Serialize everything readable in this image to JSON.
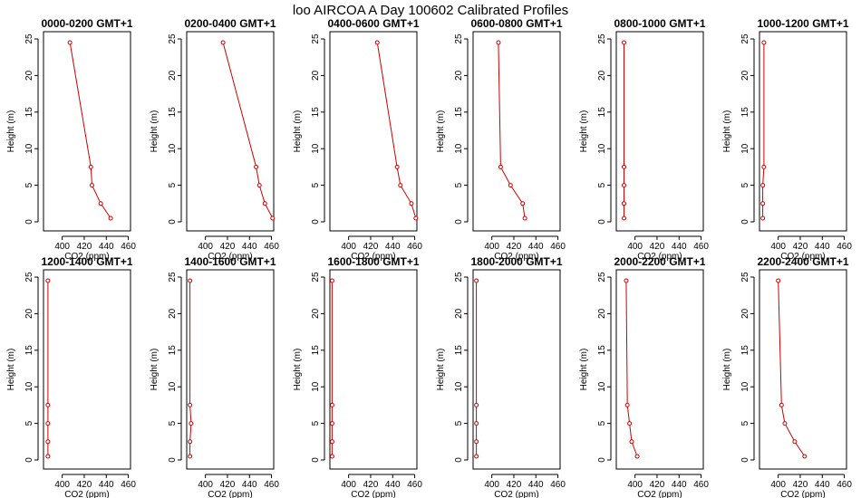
{
  "title": "loo AIRCOA A  Day 100602  Calibrated Profiles",
  "colors": {
    "series": "#cc0000",
    "axis": "#000000"
  },
  "chart_data": [
    {
      "type": "line",
      "title": "0000-0200 GMT+1",
      "xlabel": "CO2 (ppm)",
      "ylabel": "Height (m)",
      "xlim": [
        383,
        462
      ],
      "ylim": [
        0,
        25
      ],
      "xticks": [
        "400",
        "420",
        "440",
        "460"
      ],
      "yticks": [
        "0",
        "5",
        "10",
        "15",
        "20",
        "25"
      ],
      "series": [
        {
          "x": [
            407,
            426,
            427,
            435,
            444
          ],
          "y": [
            24.5,
            7.5,
            5.0,
            2.5,
            0.5
          ]
        }
      ]
    },
    {
      "type": "line",
      "title": "0200-0400 GMT+1",
      "xlabel": "CO2 (ppm)",
      "ylabel": "Height (m)",
      "xlim": [
        383,
        462
      ],
      "ylim": [
        0,
        25
      ],
      "xticks": [
        "400",
        "420",
        "440",
        "460"
      ],
      "yticks": [
        "0",
        "5",
        "10",
        "15",
        "20",
        "25"
      ],
      "series": [
        {
          "x": [
            416,
            446,
            449,
            454,
            461
          ],
          "y": [
            24.5,
            7.5,
            5.0,
            2.5,
            0.5
          ]
        }
      ]
    },
    {
      "type": "line",
      "title": "0400-0600 GMT+1",
      "xlabel": "CO2 (ppm)",
      "ylabel": "Height (m)",
      "xlim": [
        383,
        462
      ],
      "ylim": [
        0,
        25
      ],
      "xticks": [
        "400",
        "420",
        "440",
        "460"
      ],
      "yticks": [
        "0",
        "5",
        "10",
        "15",
        "20",
        "25"
      ],
      "series": [
        {
          "x": [
            426,
            444,
            447,
            457,
            461
          ],
          "y": [
            24.5,
            7.5,
            5.0,
            2.5,
            0.5
          ]
        }
      ]
    },
    {
      "type": "line",
      "title": "0600-0800 GMT+1",
      "xlabel": "CO2 (ppm)",
      "ylabel": "Height (m)",
      "xlim": [
        383,
        462
      ],
      "ylim": [
        0,
        25
      ],
      "xticks": [
        "400",
        "420",
        "440",
        "460"
      ],
      "yticks": [
        "0",
        "5",
        "10",
        "15",
        "20",
        "25"
      ],
      "series": [
        {
          "x": [
            406,
            408,
            417,
            428,
            430
          ],
          "y": [
            24.5,
            7.5,
            5.0,
            2.5,
            0.5
          ]
        }
      ]
    },
    {
      "type": "line",
      "title": "0800-1000 GMT+1",
      "xlabel": "CO2 (ppm)",
      "ylabel": "Height (m)",
      "xlim": [
        383,
        462
      ],
      "ylim": [
        0,
        25
      ],
      "xticks": [
        "400",
        "420",
        "440",
        "460"
      ],
      "yticks": [
        "0",
        "5",
        "10",
        "15",
        "20",
        "25"
      ],
      "series": [
        {
          "x": [
            390,
            390,
            390,
            390,
            390
          ],
          "y": [
            24.5,
            7.5,
            5.0,
            2.5,
            0.5
          ]
        }
      ]
    },
    {
      "type": "line",
      "title": "1000-1200 GMT+1",
      "xlabel": "CO2 (ppm)",
      "ylabel": "Height (m)",
      "xlim": [
        383,
        462
      ],
      "ylim": [
        0,
        25
      ],
      "xticks": [
        "400",
        "420",
        "440",
        "460"
      ],
      "yticks": [
        "0",
        "5",
        "10",
        "15",
        "20",
        "25"
      ],
      "series": [
        {
          "x": [
            387,
            387,
            386,
            386,
            386
          ],
          "y": [
            24.5,
            7.5,
            5.0,
            2.5,
            0.5
          ]
        }
      ]
    },
    {
      "type": "line",
      "title": "1200-1400 GMT+1",
      "xlabel": "CO2 (ppm)",
      "ylabel": "Height (m)",
      "xlim": [
        383,
        462
      ],
      "ylim": [
        0,
        25
      ],
      "xticks": [
        "400",
        "420",
        "440",
        "460"
      ],
      "yticks": [
        "0",
        "5",
        "10",
        "15",
        "20",
        "25"
      ],
      "series": [
        {
          "x": [
            387,
            387,
            387,
            387,
            387
          ],
          "y": [
            24.5,
            7.5,
            5.0,
            2.5,
            0.5
          ]
        }
      ]
    },
    {
      "type": "line",
      "title": "1400-1600 GMT+1",
      "xlabel": "CO2 (ppm)",
      "ylabel": "Height (m)",
      "xlim": [
        383,
        462
      ],
      "ylim": [
        0,
        25
      ],
      "xticks": [
        "400",
        "420",
        "440",
        "460"
      ],
      "yticks": [
        "0",
        "5",
        "10",
        "15",
        "20",
        "25"
      ],
      "series": [
        {
          "x": [
            386,
            386,
            387,
            386,
            386
          ],
          "y": [
            24.5,
            7.5,
            5.0,
            2.5,
            0.5
          ]
        }
      ]
    },
    {
      "type": "line",
      "title": "1600-1800 GMT+1",
      "xlabel": "CO2 (ppm)",
      "ylabel": "Height (m)",
      "xlim": [
        383,
        462
      ],
      "ylim": [
        0,
        25
      ],
      "xticks": [
        "400",
        "420",
        "440",
        "460"
      ],
      "yticks": [
        "0",
        "5",
        "10",
        "15",
        "20",
        "25"
      ],
      "series": [
        {
          "x": [
            385,
            385,
            385,
            385,
            385
          ],
          "y": [
            24.5,
            7.5,
            5.0,
            2.5,
            0.5
          ]
        }
      ]
    },
    {
      "type": "line",
      "title": "1800-2000 GMT+1",
      "xlabel": "CO2 (ppm)",
      "ylabel": "Height (m)",
      "xlim": [
        383,
        462
      ],
      "ylim": [
        0,
        25
      ],
      "xticks": [
        "400",
        "420",
        "440",
        "460"
      ],
      "yticks": [
        "0",
        "5",
        "10",
        "15",
        "20",
        "25"
      ],
      "series": [
        {
          "x": [
            386,
            386,
            386,
            386,
            386
          ],
          "y": [
            24.5,
            7.5,
            5.0,
            2.5,
            0.5
          ]
        }
      ]
    },
    {
      "type": "line",
      "title": "2000-2200 GMT+1",
      "xlabel": "CO2 (ppm)",
      "ylabel": "Height (m)",
      "xlim": [
        383,
        462
      ],
      "ylim": [
        0,
        25
      ],
      "xticks": [
        "400",
        "420",
        "440",
        "460"
      ],
      "yticks": [
        "0",
        "5",
        "10",
        "15",
        "20",
        "25"
      ],
      "series": [
        {
          "x": [
            392,
            393,
            395,
            397,
            402
          ],
          "y": [
            24.5,
            7.5,
            5.0,
            2.5,
            0.5
          ]
        }
      ]
    },
    {
      "type": "line",
      "title": "2200-2400 GMT+1",
      "xlabel": "CO2 (ppm)",
      "ylabel": "Height (m)",
      "xlim": [
        383,
        462
      ],
      "ylim": [
        0,
        25
      ],
      "xticks": [
        "400",
        "420",
        "440",
        "460"
      ],
      "yticks": [
        "0",
        "5",
        "10",
        "15",
        "20",
        "25"
      ],
      "series": [
        {
          "x": [
            400,
            403,
            406,
            415,
            424
          ],
          "y": [
            24.5,
            7.5,
            5.0,
            2.5,
            0.5
          ]
        }
      ]
    }
  ]
}
